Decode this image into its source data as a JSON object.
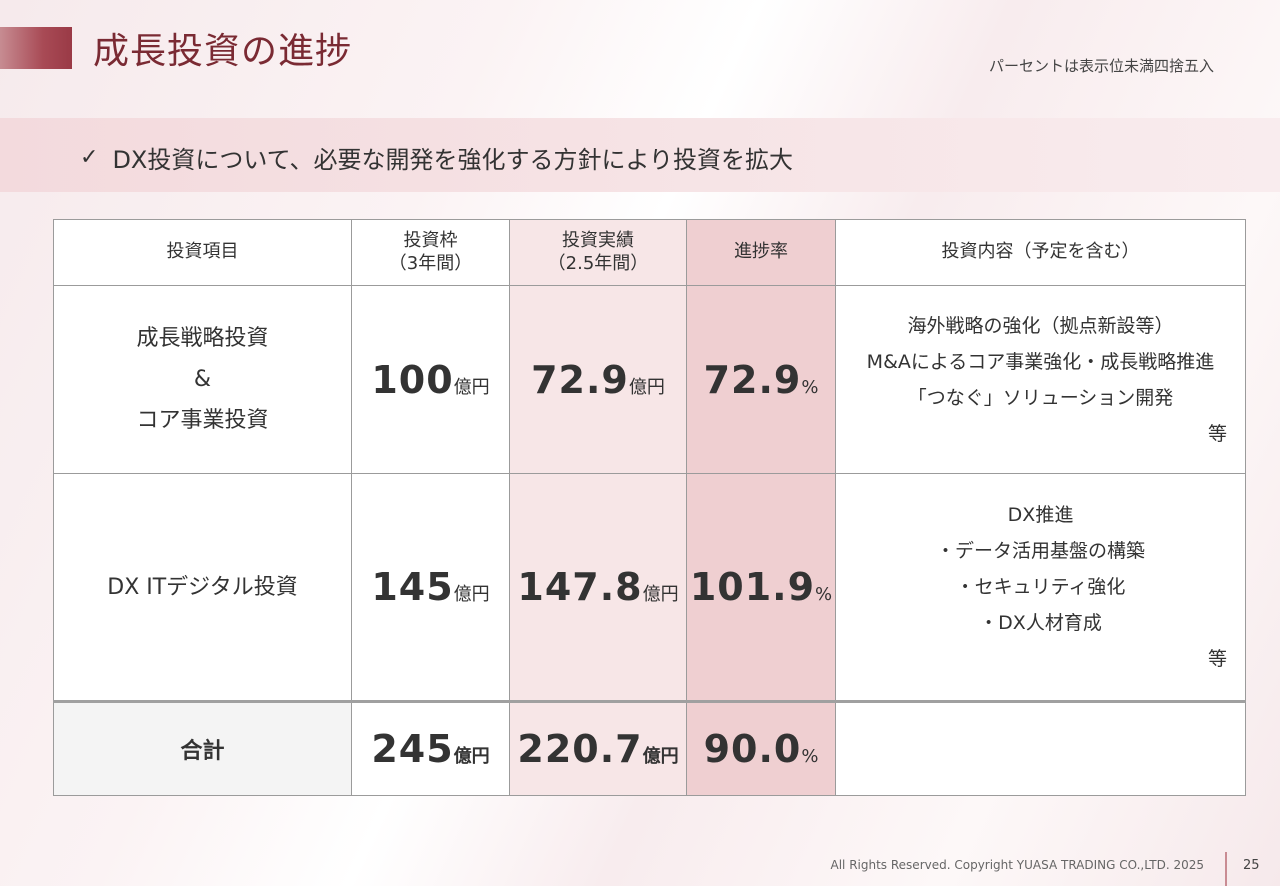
{
  "header": {
    "title": "成長投資の進捗",
    "note": "パーセントは表示位未満四捨五入"
  },
  "banner": {
    "check": "✓",
    "text": "DX投資について、必要な開発を強化する方針により投資を拡大"
  },
  "table": {
    "headers": {
      "item": "投資項目",
      "budget_l1": "投資枠",
      "budget_l2": "（3年間）",
      "actual_l1": "投資実績",
      "actual_l2": "（2.5年間）",
      "rate": "進捗率",
      "content": "投資内容（予定を含む）"
    },
    "rows": [
      {
        "item_l1": "成長戦略投資",
        "item_l2": "&",
        "item_l3": "コア事業投資",
        "budget": "100",
        "budget_unit": "億円",
        "actual": "72.9",
        "actual_unit": "億円",
        "rate": "72.9",
        "rate_unit": "%",
        "content": [
          "海外戦略の強化（拠点新設等）",
          "M&Aによるコア事業強化・成長戦略推進",
          "「つなぐ」ソリューション開発"
        ],
        "etc": "等"
      },
      {
        "item_l1": "DX ITデジタル投資",
        "budget": "145",
        "budget_unit": "億円",
        "actual": "147.8",
        "actual_unit": "億円",
        "rate": "101.9",
        "rate_unit": "%",
        "content": [
          "DX推進",
          "・データ活用基盤の構築",
          "・セキュリティ強化",
          "・DX人材育成"
        ],
        "etc": "等"
      }
    ],
    "total": {
      "label": "合計",
      "budget": "245",
      "budget_unit": "億円",
      "actual": "220.7",
      "actual_unit": "億円",
      "rate": "90.0",
      "rate_unit": "%"
    }
  },
  "footer": {
    "copyright": "All Rights Reserved. Copyright  YUASA TRADING CO.,LTD. 2025",
    "page": "25"
  }
}
